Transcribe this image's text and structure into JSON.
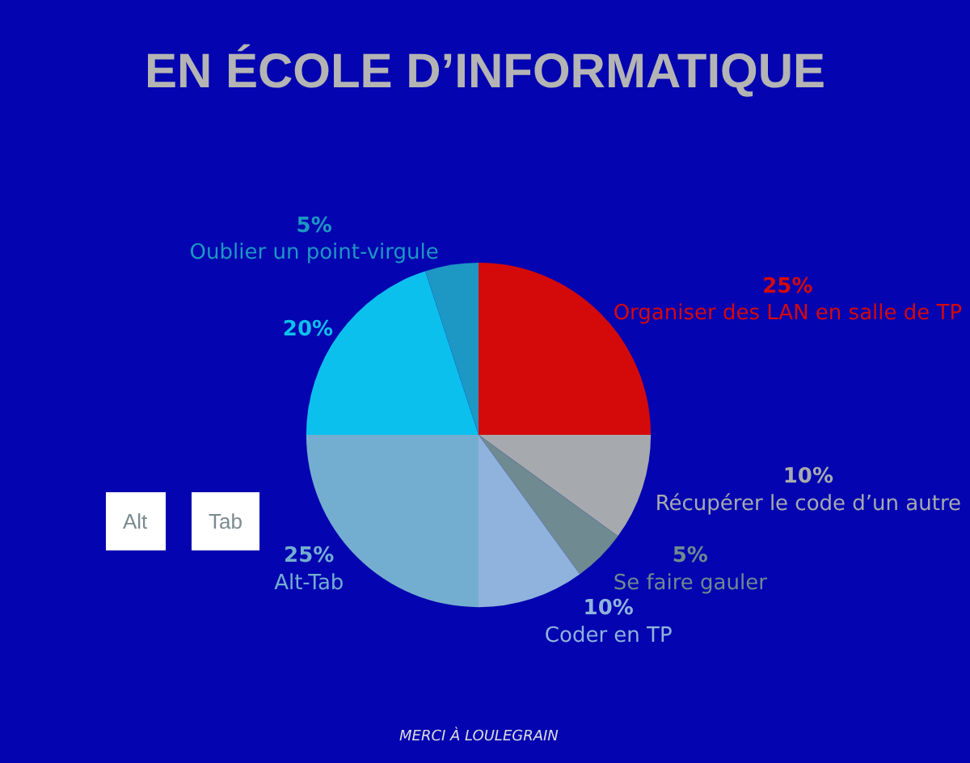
{
  "chart_data": {
    "type": "pie",
    "title": "EN ÉCOLE D’INFORMATIQUE",
    "categories": [
      "Organiser des LAN en salle de TP",
      "Récupérer le code d’un autre",
      "Se faire gauler",
      "Coder en TP",
      "Alt-Tab",
      null,
      "Oublier un point-virgule"
    ],
    "values": [
      25,
      10,
      5,
      10,
      25,
      20,
      5
    ],
    "colors": [
      "#d40a0a",
      "#a6aaae",
      "#6f8a90",
      "#8fb3dc",
      "#73aed0",
      "#0cc0ee",
      "#1d97c4"
    ],
    "value_labels": [
      "25%",
      "10%",
      "5%",
      "10%",
      "25%",
      "20%",
      "5%"
    ],
    "annotations": [
      "Alt",
      "Tab",
      "MERCI À LOULEGRAIN"
    ]
  }
}
